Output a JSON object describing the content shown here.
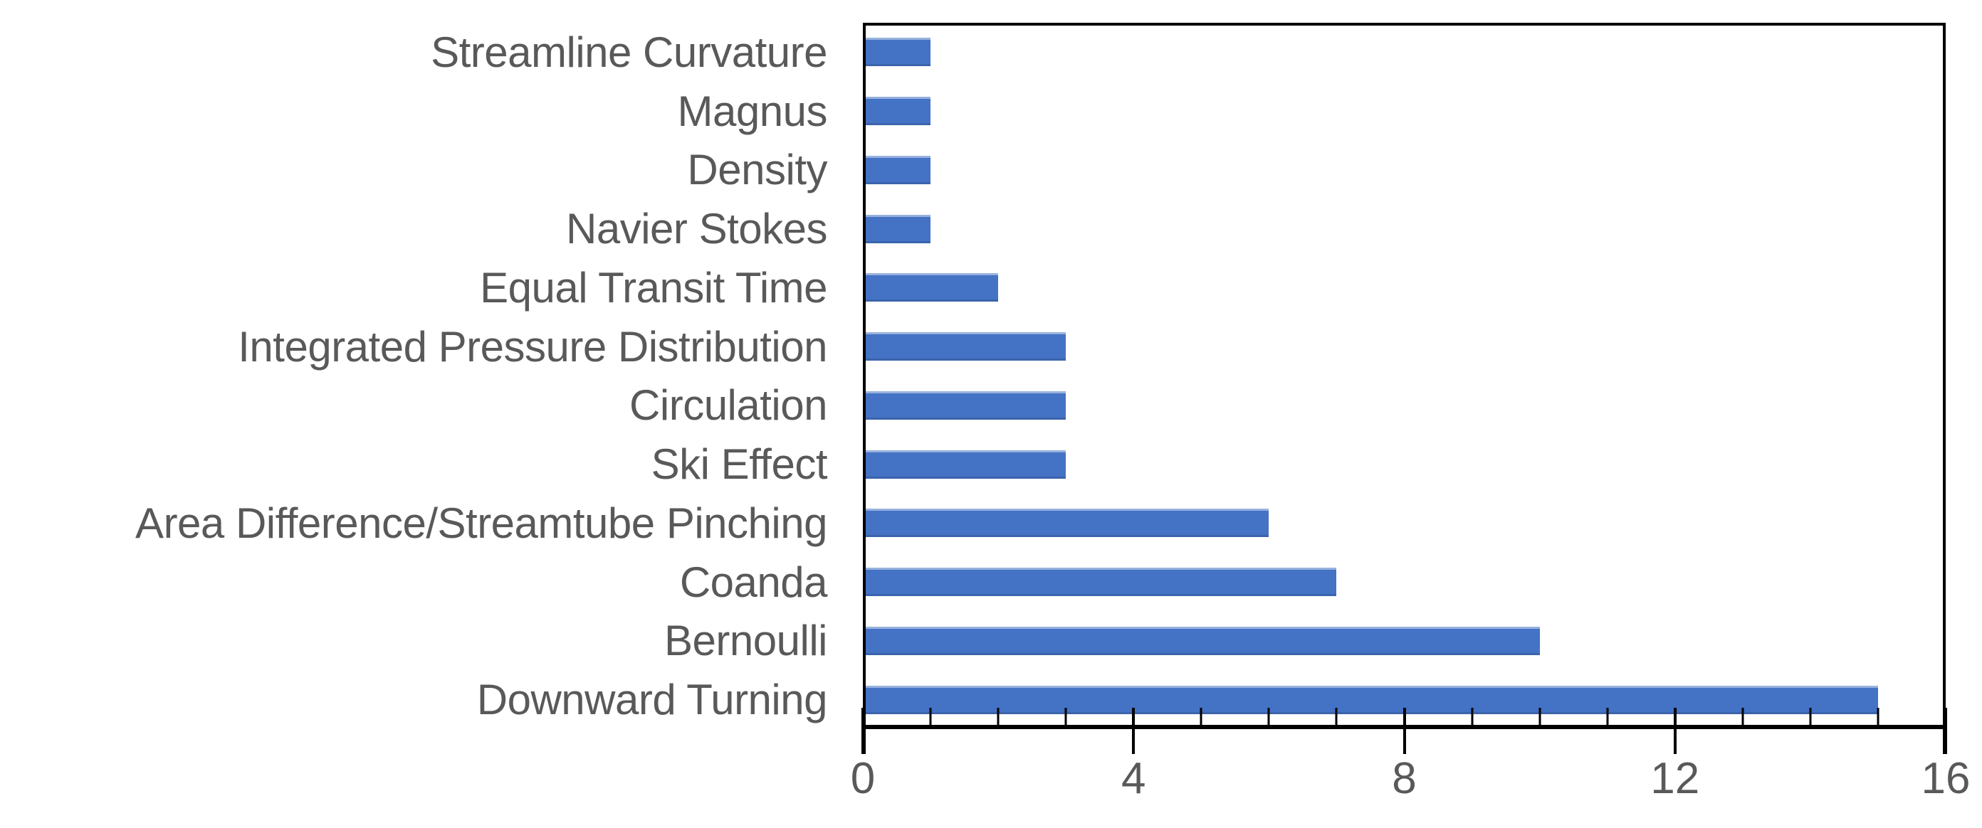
{
  "chart_data": {
    "type": "bar",
    "orientation": "horizontal",
    "title": "",
    "xlabel": "",
    "ylabel": "",
    "categories": [
      "Streamline Curvature",
      "Magnus",
      "Density",
      "Navier Stokes",
      "Equal Transit Time",
      "Integrated Pressure Distribution",
      "Circulation",
      "Ski Effect",
      "Area Difference/Streamtube Pinching",
      "Coanda",
      "Bernoulli",
      "Downward Turning"
    ],
    "values": [
      1,
      1,
      1,
      1,
      2,
      3,
      3,
      3,
      6,
      7,
      10,
      15
    ],
    "xlim": [
      0,
      16
    ],
    "x_major_ticks": [
      0,
      4,
      8,
      12,
      16
    ],
    "x_major_tick_labels": [
      "0",
      "4",
      "8",
      "12",
      "16"
    ],
    "x_minor_tick_step": 1,
    "grid": false,
    "legend": false,
    "colors": {
      "bar": "#4472C4",
      "text": "#595959",
      "axis": "#000000",
      "background": "#ffffff"
    }
  }
}
